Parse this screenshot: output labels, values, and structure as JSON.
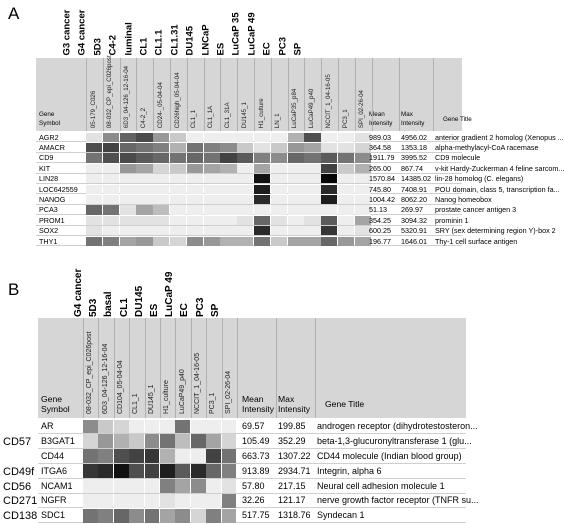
{
  "panels": [
    {
      "letter": "A",
      "top_labels": [
        "G3 cancer",
        "G4 cancer",
        "5D3",
        "C4-2",
        "luminal",
        "CL1",
        "CL1.1",
        "CL1.31",
        "DU145",
        "LNCaP",
        "ES",
        "LuCaP 35",
        "LuCaP 49",
        "EC",
        "PC3",
        "SP"
      ],
      "header": {
        "gene_symbol": [
          "Gene",
          "Symbol"
        ],
        "mean": [
          "Mean",
          "Intensity"
        ],
        "max": [
          "Max",
          "Intensity"
        ],
        "title": "Gene Title"
      },
      "samples": [
        "05-179_C026",
        "08-032_CP_epi_C026post",
        "6D3_04-126_12-16-04",
        "C4-2_2",
        "CD24-_05-04-04",
        "CD26high_05-04-04",
        "CL1_1",
        "CL1_1A",
        "CL1_31A",
        "DU145_1",
        "H1_culture",
        "LN_1",
        "LuCaP35_p84",
        "LuCaP49_p40",
        "NCCIT_1_04-16-05",
        "PC3_1",
        "SPI_02-26-04"
      ],
      "rows": [
        {
          "gene": "AGR2",
          "mean": "989.03",
          "max": "4956.02",
          "title": "anterior gradient 2 homolog (Xenopus ..."
        },
        {
          "gene": "AMACR",
          "mean": "364.58",
          "max": "1353.18",
          "title": "alpha-methylacyl-CoA racemase"
        },
        {
          "gene": "CD9",
          "mean": "1911.79",
          "max": "3995.52",
          "title": "CD9 molecule"
        },
        {
          "gene": "KIT",
          "mean": "265.00",
          "max": "867.74",
          "title": "v-kit Hardy-Zuckerman 4 feline sarcom..."
        },
        {
          "gene": "LIN28",
          "mean": "1570.84",
          "max": "14385.02",
          "title": "lin-28 homolog (C. elegans)"
        },
        {
          "gene": "LOC642559",
          "mean": "745.80",
          "max": "7408.91",
          "title": "POU domain, class 5, transcription fa..."
        },
        {
          "gene": "NANOG",
          "mean": "1004.42",
          "max": "8062.20",
          "title": "Nanog homeobox"
        },
        {
          "gene": "PCA3",
          "mean": "51.13",
          "max": "269.97",
          "title": "prostate cancer antigen 3"
        },
        {
          "gene": "PROM1",
          "mean": "354.25",
          "max": "3094.32",
          "title": "prominin 1"
        },
        {
          "gene": "SOX2",
          "mean": "600.25",
          "max": "5320.91",
          "title": "SRY (sex determining region Y)-box 2"
        },
        {
          "gene": "THY1",
          "mean": "196.77",
          "max": "1646.01",
          "title": "Thy-1 cell surface antigen"
        }
      ],
      "heat": [
        [
          0.1,
          0.45,
          0.62,
          0.72,
          0.4,
          0.2,
          0.05,
          0.05,
          0.05,
          0.05,
          0.05,
          0.05,
          0.3,
          0.7,
          0.05,
          0.05,
          0.1
        ],
        [
          0.7,
          0.75,
          0.6,
          0.55,
          0.5,
          0.3,
          0.55,
          0.5,
          0.45,
          0.2,
          0.1,
          0.2,
          0.4,
          0.35,
          0.1,
          0.1,
          0.15
        ],
        [
          0.55,
          0.7,
          0.72,
          0.65,
          0.6,
          0.55,
          0.6,
          0.55,
          0.75,
          0.65,
          0.5,
          0.45,
          0.6,
          0.55,
          0.65,
          0.55,
          0.45
        ],
        [
          0.05,
          0.05,
          0.4,
          0.35,
          0.15,
          0.2,
          0.4,
          0.35,
          0.3,
          0.05,
          0.35,
          0.05,
          0.05,
          0.05,
          0.75,
          0.2,
          0.3
        ],
        [
          0.05,
          0.05,
          0.05,
          0.05,
          0.05,
          0.05,
          0.05,
          0.05,
          0.05,
          0.05,
          0.95,
          0.05,
          0.05,
          0.05,
          1.0,
          0.05,
          0.05
        ],
        [
          0.05,
          0.05,
          0.05,
          0.05,
          0.05,
          0.05,
          0.05,
          0.05,
          0.05,
          0.05,
          0.9,
          0.05,
          0.05,
          0.05,
          0.85,
          0.05,
          0.05
        ],
        [
          0.05,
          0.05,
          0.05,
          0.05,
          0.05,
          0.05,
          0.05,
          0.05,
          0.05,
          0.05,
          0.85,
          0.05,
          0.05,
          0.05,
          0.9,
          0.05,
          0.05
        ],
        [
          0.6,
          0.55,
          0.1,
          0.35,
          0.25,
          0.05,
          0.05,
          0.05,
          0.05,
          0.05,
          0.05,
          0.05,
          0.05,
          0.05,
          0.05,
          0.05,
          0.05
        ],
        [
          0.1,
          0.1,
          0.1,
          0.1,
          0.1,
          0.05,
          0.05,
          0.05,
          0.05,
          0.1,
          0.6,
          0.1,
          0.05,
          0.1,
          0.65,
          0.05,
          0.35
        ],
        [
          0.1,
          0.05,
          0.05,
          0.05,
          0.05,
          0.05,
          0.05,
          0.05,
          0.05,
          0.05,
          0.85,
          0.05,
          0.05,
          0.05,
          0.8,
          0.05,
          0.1
        ],
        [
          0.55,
          0.5,
          0.35,
          0.4,
          0.2,
          0.15,
          0.45,
          0.4,
          0.3,
          0.3,
          0.55,
          0.2,
          0.35,
          0.35,
          0.6,
          0.4,
          0.35
        ]
      ]
    },
    {
      "letter": "B",
      "top_labels": [
        "G4 cancer",
        "5D3",
        "basal",
        "CL1",
        "DU145",
        "ES",
        "LuCaP 49",
        "EC",
        "PC3",
        "SP"
      ],
      "header": {
        "gene_symbol": [
          "Gene",
          "Symbol"
        ],
        "mean": [
          "Mean",
          "Intensity"
        ],
        "max": [
          "Max",
          "Intensity"
        ],
        "title": "Gene Title"
      },
      "samples": [
        "08-032_CP_epi_C026post",
        "6D3_04-126_12-16-04",
        "CD104_05-04-04",
        "CL1_1",
        "DU145_1",
        "H1_culture",
        "LuCaP49_p40",
        "NCCIT_1_04-16-05",
        "PC3_1",
        "SPI_02-26-04"
      ],
      "rows": [
        {
          "gene": "AR",
          "mean": "69.57",
          "max": "199.85",
          "title": "androgen receptor (dihydrotestosteron..."
        },
        {
          "gene": "B3GAT1",
          "mean": "105.49",
          "max": "352.29",
          "title": "beta-1,3-glucuronyltransferase 1 (glu..."
        },
        {
          "gene": "CD44",
          "mean": "663.73",
          "max": "1307.22",
          "title": "CD44 molecule (Indian blood group)"
        },
        {
          "gene": "ITGA6",
          "mean": "913.89",
          "max": "2934.71",
          "title": "Integrin, alpha 6"
        },
        {
          "gene": "NCAM1",
          "mean": "57.80",
          "max": "217.15",
          "title": "Neural cell adhesion molecule 1"
        },
        {
          "gene": "NGFR",
          "mean": "32.26",
          "max": "121.17",
          "title": "nerve growth factor receptor (TNFR su..."
        },
        {
          "gene": "SDC1",
          "mean": "517.75",
          "max": "1318.76",
          "title": "Syndecan 1"
        }
      ],
      "heat": [
        [
          0.45,
          0.2,
          0.15,
          0.05,
          0.05,
          0.05,
          0.55,
          0.05,
          0.05,
          0.05
        ],
        [
          0.15,
          0.4,
          0.3,
          0.2,
          0.45,
          0.55,
          0.25,
          0.6,
          0.35,
          0.15
        ],
        [
          0.55,
          0.5,
          0.7,
          0.75,
          0.8,
          0.3,
          0.05,
          0.05,
          0.75,
          0.55
        ],
        [
          0.8,
          0.85,
          0.95,
          0.7,
          0.75,
          0.9,
          0.65,
          0.85,
          0.6,
          0.5
        ],
        [
          0.05,
          0.05,
          0.05,
          0.05,
          0.05,
          0.5,
          0.35,
          0.45,
          0.05,
          0.1
        ],
        [
          0.05,
          0.05,
          0.05,
          0.05,
          0.05,
          0.1,
          0.05,
          0.05,
          0.05,
          0.5
        ],
        [
          0.55,
          0.5,
          0.6,
          0.45,
          0.55,
          0.35,
          0.45,
          0.15,
          0.5,
          0.35
        ]
      ],
      "side_labels": [
        {
          "text": "CD57",
          "row": 1
        },
        {
          "text": "CD49f",
          "row": 3
        },
        {
          "text": "CD56",
          "row": 4
        },
        {
          "text": "CD271",
          "row": 5
        },
        {
          "text": "CD138",
          "row": 6
        }
      ]
    }
  ]
}
